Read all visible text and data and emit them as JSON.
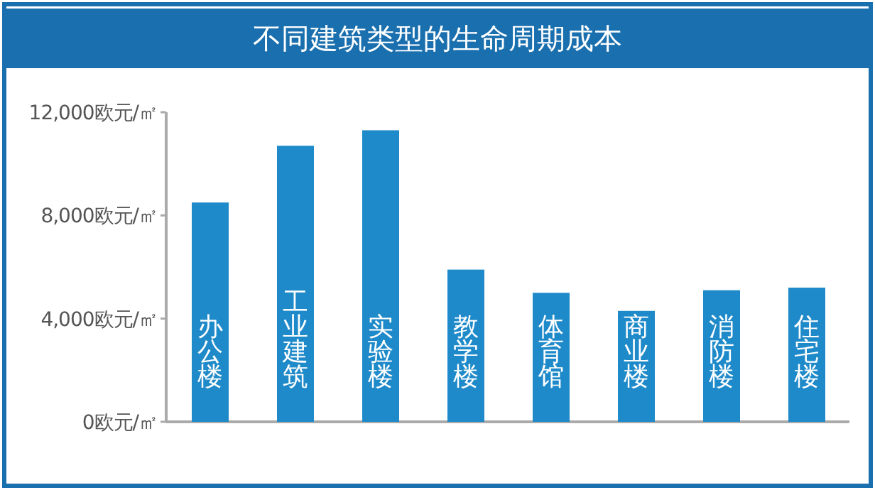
{
  "chart_data": {
    "type": "bar",
    "title": "不同建筑类型的生命周期成本",
    "categories": [
      "办公楼",
      "工业建筑",
      "实验楼",
      "教学楼",
      "体育馆",
      "商业楼",
      "消防楼",
      "住宅楼"
    ],
    "values": [
      8500,
      10700,
      11300,
      5900,
      5000,
      4300,
      5100,
      5200
    ],
    "color": "#1f8ac9",
    "ylim": [
      0,
      12000
    ],
    "yticks": [
      {
        "value": 0,
        "label": "0欧元/㎡"
      },
      {
        "value": 4000,
        "label": "4,000欧元/㎡"
      },
      {
        "value": 8000,
        "label": "8,000欧元/㎡"
      },
      {
        "value": 12000,
        "label": "12,000欧元/㎡"
      }
    ]
  }
}
